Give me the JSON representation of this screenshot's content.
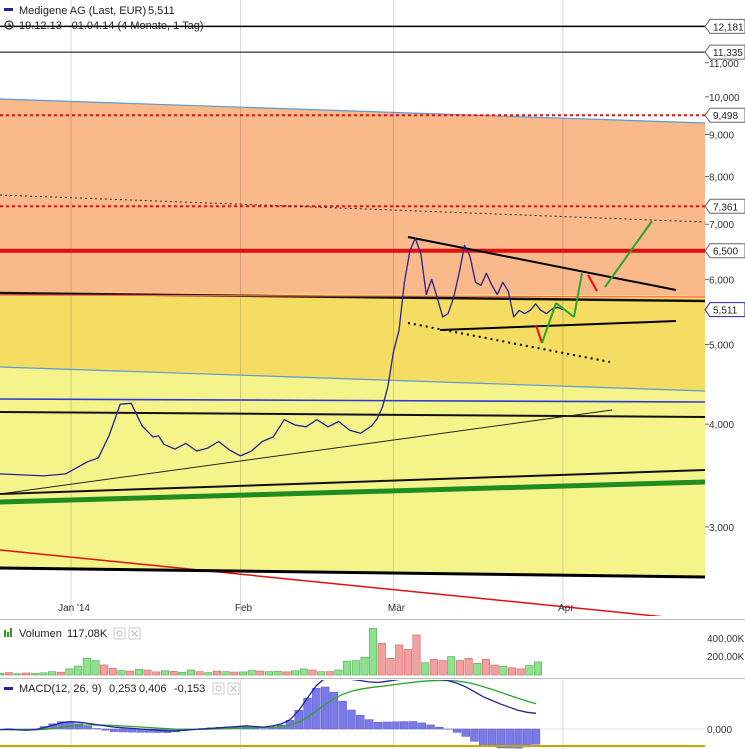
{
  "header": {
    "title": "Medigene AG (Last, EUR)",
    "last": "5,511",
    "range": "19.12.13 - 01.04.14 (4 Monate, 1 Tag)"
  },
  "colors": {
    "price": "#23238f",
    "orange_zone": "#f9b98a",
    "yellow_zone": "#f4dd62",
    "light_yellow_zone": "#f4f48a",
    "vol_up": "#8ee28e",
    "vol_down": "#f2a0a0",
    "macd_hist": "#7a7ae6",
    "macd_line": "#23239f",
    "signal_line": "#2aa52a",
    "level_red": "#e01010",
    "trend_green": "#1e8c1e"
  },
  "chart_data": [
    {
      "type": "line",
      "title": "Medigene AG (Last, EUR)",
      "yscale": "log",
      "ylim": [
        2.6,
        12.4
      ],
      "x_range": [
        "2013-12-19",
        "2014-04-27"
      ],
      "x_ticks": [
        "Jan '14",
        "Feb",
        "Mär",
        "Apr"
      ],
      "x_tick_dates": [
        "2014-01-01",
        "2014-02-01",
        "2014-03-01",
        "2014-04-01"
      ],
      "y_ticks": [
        "3,000",
        "4,000",
        "5,000",
        "6,000",
        "7,000",
        "8,000",
        "9,000",
        "10,000",
        "11,000"
      ],
      "y_tick_values": [
        3,
        4,
        5,
        6,
        7,
        8,
        9,
        10,
        11
      ],
      "price_badges": [
        {
          "label": "12,181",
          "value": 12.181
        },
        {
          "label": "11,335",
          "value": 11.335
        },
        {
          "label": "9,498",
          "value": 9.498
        },
        {
          "label": "7,361",
          "value": 7.361
        },
        {
          "label": "6,500",
          "value": 6.5
        },
        {
          "label": "5,511",
          "value": 5.511
        }
      ],
      "series": [
        {
          "name": "Medigene AG (Last, EUR)",
          "x": [
            "2013-12-19",
            "2013-12-23",
            "2013-12-27",
            "2013-12-31",
            "2014-01-04",
            "2014-01-06",
            "2014-01-08",
            "2014-01-10",
            "2014-01-12",
            "2014-01-14",
            "2014-01-16",
            "2014-01-17",
            "2014-01-18",
            "2014-01-20",
            "2014-01-22",
            "2014-01-24",
            "2014-01-26",
            "2014-01-28",
            "2014-01-30",
            "2014-02-01",
            "2014-02-03",
            "2014-02-05",
            "2014-02-07",
            "2014-02-09",
            "2014-02-11",
            "2014-02-13",
            "2014-02-15",
            "2014-02-17",
            "2014-02-19",
            "2014-02-21",
            "2014-02-23",
            "2014-02-25",
            "2014-02-26",
            "2014-02-27",
            "2014-02-28",
            "2014-03-01",
            "2014-03-02",
            "2014-03-03",
            "2014-03-04",
            "2014-03-05",
            "2014-03-06",
            "2014-03-07",
            "2014-03-08",
            "2014-03-09",
            "2014-03-10",
            "2014-03-11",
            "2014-03-12",
            "2014-03-13",
            "2014-03-14",
            "2014-03-15",
            "2014-03-16",
            "2014-03-17",
            "2014-03-18",
            "2014-03-19",
            "2014-03-20",
            "2014-03-21",
            "2014-03-22",
            "2014-03-23",
            "2014-03-24",
            "2014-03-25",
            "2014-03-26",
            "2014-03-27",
            "2014-03-28",
            "2014-03-29",
            "2014-03-30",
            "2014-03-31",
            "2014-04-01"
          ],
          "values": [
            3.48,
            3.47,
            3.46,
            3.48,
            3.6,
            3.64,
            3.88,
            4.23,
            4.24,
            3.98,
            3.86,
            3.87,
            3.78,
            3.73,
            3.79,
            3.71,
            3.74,
            3.81,
            3.72,
            3.66,
            3.71,
            3.81,
            3.86,
            4.05,
            3.99,
            3.97,
            4.05,
            3.97,
            4.03,
            3.93,
            3.9,
            3.98,
            4.06,
            4.2,
            4.45,
            4.9,
            5.2,
            5.95,
            6.5,
            6.73,
            6.45,
            5.75,
            6.0,
            5.7,
            5.4,
            5.45,
            5.7,
            6.1,
            6.6,
            6.4,
            5.95,
            5.9,
            6.1,
            5.9,
            5.75,
            5.95,
            5.8,
            5.4,
            5.5,
            5.45,
            5.5,
            5.6,
            5.5,
            5.45,
            5.52,
            5.55,
            5.511
          ]
        }
      ]
    },
    {
      "type": "bar",
      "title": "Volumen",
      "last": "117,08K",
      "y_ticks": [
        "200,00K",
        "400,00K"
      ],
      "ylim": [
        0,
        450000
      ],
      "x_ticks": [
        "Jan '14",
        "Feb",
        "Mär",
        "Apr"
      ],
      "series": [
        {
          "name": "Volumen",
          "values": [
            15000,
            22000,
            12000,
            18000,
            14000,
            20000,
            30000,
            25000,
            55000,
            80000,
            150000,
            130000,
            90000,
            60000,
            40000,
            35000,
            50000,
            45000,
            28000,
            38000,
            32000,
            25000,
            45000,
            30000,
            22000,
            35000,
            30000,
            26000,
            28000,
            40000,
            35000,
            30000,
            32000,
            28000,
            38000,
            55000,
            45000,
            30000,
            30000,
            45000,
            125000,
            130000,
            160000,
            420000,
            285000,
            150000,
            270000,
            230000,
            360000,
            110000,
            140000,
            130000,
            165000,
            130000,
            150000,
            105000,
            140000,
            90000,
            80000,
            65000,
            55000,
            85000,
            117080
          ],
          "direction": [
            "up",
            "down",
            "up",
            "down",
            "up",
            "up",
            "up",
            "down",
            "up",
            "up",
            "up",
            "up",
            "down",
            "down",
            "up",
            "down",
            "up",
            "down",
            "down",
            "up",
            "down",
            "up",
            "up",
            "down",
            "up",
            "down",
            "up",
            "down",
            "up",
            "up",
            "down",
            "up",
            "up",
            "down",
            "up",
            "up",
            "down",
            "up",
            "down",
            "up",
            "up",
            "up",
            "up",
            "up",
            "down",
            "down",
            "down",
            "down",
            "down",
            "up",
            "down",
            "down",
            "up",
            "down",
            "down",
            "up",
            "down",
            "down",
            "up",
            "down",
            "down",
            "up",
            "up"
          ]
        }
      ]
    },
    {
      "type": "line",
      "title": "MACD(12, 26, 9)",
      "macd": "0,253",
      "signal": "0,406",
      "hist": "-0,153",
      "y_ticks": [
        "0,000"
      ],
      "x_ticks": [
        "Jan '14",
        "Feb",
        "Mär",
        "Apr"
      ],
      "series": [
        {
          "name": "MACD",
          "values": [
            -0.01,
            -0.005,
            -0.015,
            -0.02,
            -0.01,
            0.02,
            0.06,
            0.1,
            0.12,
            0.11,
            0.09,
            0.07,
            0.05,
            0.03,
            0.02,
            0.01,
            0.0,
            -0.01,
            -0.02,
            -0.03,
            -0.03,
            -0.02,
            -0.01,
            0.0,
            0.01,
            0.02,
            0.03,
            0.04,
            0.05,
            0.04,
            0.03,
            0.05,
            0.08,
            0.15,
            0.3,
            0.5,
            0.7,
            0.82,
            0.86,
            0.84,
            0.8,
            0.78,
            0.76,
            0.75,
            0.77,
            0.79,
            0.81,
            0.83,
            0.83,
            0.82,
            0.8,
            0.78,
            0.74,
            0.68,
            0.6,
            0.52,
            0.46,
            0.4,
            0.35,
            0.3,
            0.27,
            0.253
          ]
        },
        {
          "name": "Signal",
          "values": [
            -0.01,
            -0.008,
            -0.009,
            -0.011,
            -0.011,
            -0.005,
            0.008,
            0.026,
            0.045,
            0.058,
            0.064,
            0.065,
            0.062,
            0.056,
            0.049,
            0.041,
            0.033,
            0.024,
            0.015,
            0.006,
            -0.001,
            -0.005,
            -0.006,
            -0.005,
            -0.002,
            0.002,
            0.008,
            0.014,
            0.021,
            0.025,
            0.026,
            0.031,
            0.041,
            0.063,
            0.11,
            0.188,
            0.291,
            0.397,
            0.489,
            0.56,
            0.608,
            0.642,
            0.665,
            0.682,
            0.699,
            0.717,
            0.735,
            0.754,
            0.769,
            0.779,
            0.783,
            0.782,
            0.774,
            0.755,
            0.724,
            0.683,
            0.638,
            0.591,
            0.542,
            0.494,
            0.45,
            0.406
          ]
        }
      ]
    }
  ]
}
